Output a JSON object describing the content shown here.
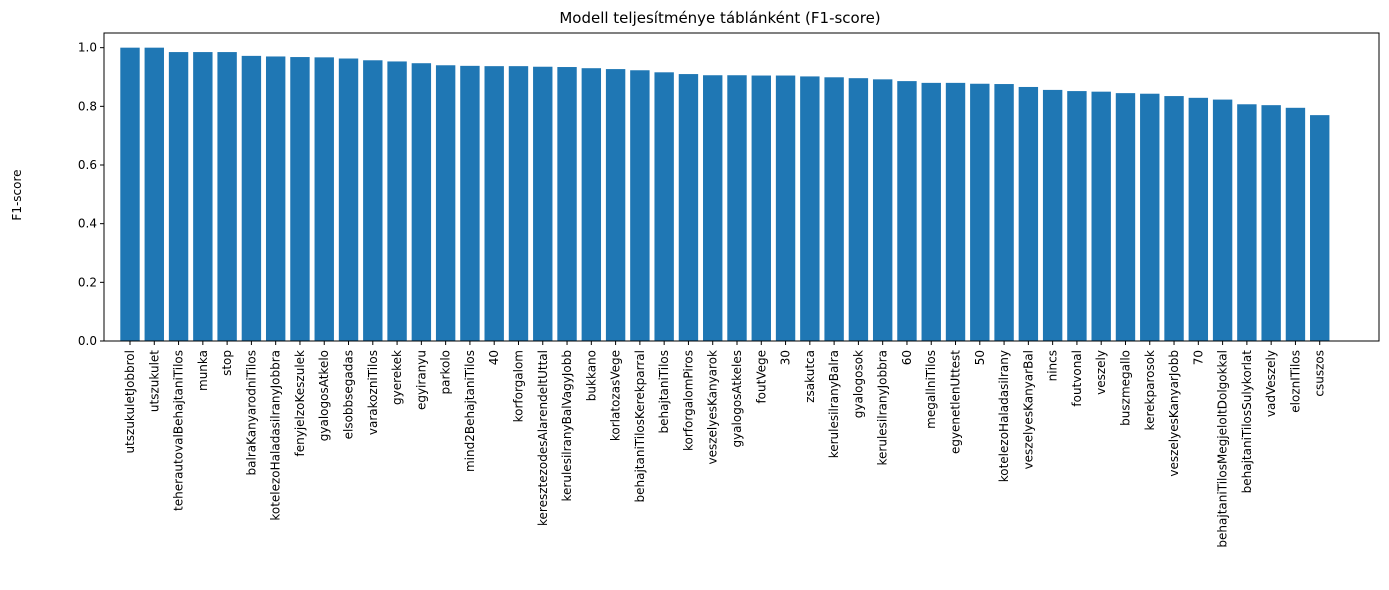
{
  "chart_data": {
    "type": "bar",
    "title": "Modell teljesítménye táblánként (F1-score)",
    "xlabel": "",
    "ylabel": "F1-score",
    "ylim": [
      0,
      1.05
    ],
    "yticks": [
      "0.0",
      "0.2",
      "0.4",
      "0.6",
      "0.8",
      "1.0"
    ],
    "bar_color": "#1f77b4",
    "grid": false,
    "categories": [
      "utszukuletJobbrol",
      "utszukulet",
      "teherautovalBehajtaniTilos",
      "munka",
      "stop",
      "balraKanyarodniTilos",
      "kotelezoHaladasilranyJobbra",
      "fenyjelzoKeszulek",
      "gyalogosAtkelo",
      "elsobbsegadas",
      "varakozniTilos",
      "gyerekek",
      "egyiranyu",
      "parkolo",
      "mind2BehajtaniTilos",
      "40",
      "korforgalom",
      "keresztezodesAlarendeltUttal",
      "kerulesilranyBalVagyJobb",
      "bukkano",
      "korlatozasVege",
      "behajtaniTilosKerekparral",
      "behajtaniTilos",
      "korforgalomPiros",
      "veszelyesKanyarok",
      "gyalogosAtkeles",
      "foutVege",
      "30",
      "zsakutca",
      "kerulesilranyBalra",
      "gyalogosok",
      "kerulesilranyJobbra",
      "60",
      "megallniTilos",
      "egyenetlenUttest",
      "50",
      "kotelezoHaladasilrany",
      "veszelyesKanyarBal",
      "nincs",
      "foutvonal",
      "veszely",
      "buszmegallo",
      "kerekparosok",
      "veszelyesKanyarJobb",
      "70",
      "behajtaniTilosMegjeloltDolgokkal",
      "behajtaniTilosSulykorlat",
      "vadVeszely",
      "eloznITilos",
      "csuszos"
    ],
    "values": [
      1.0,
      1.0,
      0.985,
      0.985,
      0.985,
      0.972,
      0.97,
      0.968,
      0.967,
      0.963,
      0.957,
      0.953,
      0.947,
      0.94,
      0.938,
      0.937,
      0.937,
      0.935,
      0.934,
      0.93,
      0.927,
      0.923,
      0.916,
      0.91,
      0.906,
      0.906,
      0.905,
      0.905,
      0.902,
      0.899,
      0.896,
      0.892,
      0.886,
      0.88,
      0.88,
      0.877,
      0.876,
      0.866,
      0.856,
      0.852,
      0.85,
      0.845,
      0.843,
      0.835,
      0.829,
      0.823,
      0.807,
      0.804,
      0.795,
      0.77
    ]
  }
}
